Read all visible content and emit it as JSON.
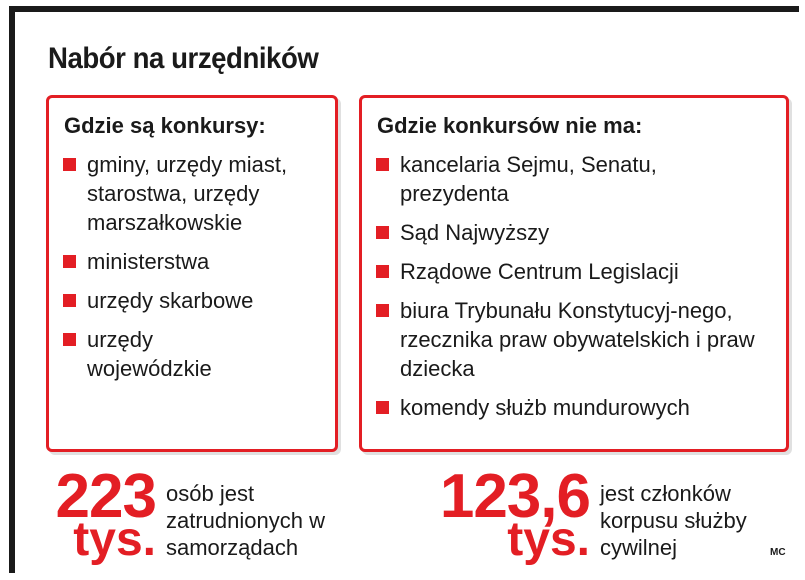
{
  "title": "Nabór na urzędników",
  "left_panel": {
    "heading": "Gdzie są konkursy:",
    "items": [
      "gminy, urzędy miast, starostwa, urzędy marszałkowskie",
      "ministerstwa",
      "urzędy skarbowe",
      "urzędy wojewódzkie"
    ]
  },
  "right_panel": {
    "heading": "Gdzie konkursów nie ma:",
    "items": [
      "kancelaria Sejmu, Senatu, prezydenta",
      "Sąd Najwyższy",
      "Rządowe Centrum Legislacji",
      "biura Trybunału Konstytucyj-nego, rzecznika praw obywatelskich i praw dziecka",
      "komendy służb mundurowych"
    ]
  },
  "stats": [
    {
      "value": "223",
      "unit": "tys.",
      "text": "osób jest zatrudnionych w samorządach"
    },
    {
      "value": "123,6",
      "unit": "tys.",
      "text": "jest członków korpusu służby cywilnej"
    }
  ],
  "credit": "MC",
  "colors": {
    "accent": "#e31e24",
    "text": "#1a1a1a"
  }
}
